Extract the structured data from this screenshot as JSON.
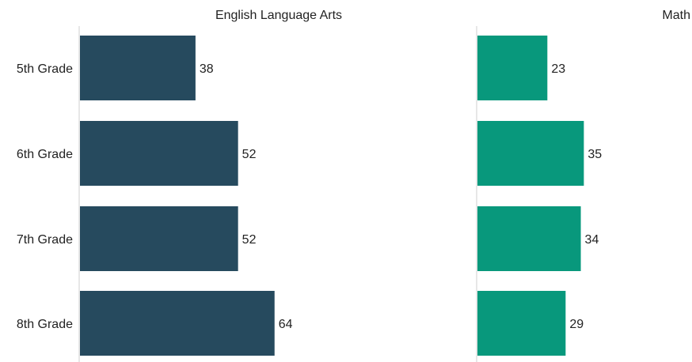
{
  "chart_data": {
    "type": "bar",
    "orientation": "horizontal",
    "categories": [
      "5th Grade",
      "6th Grade",
      "7th Grade",
      "8th Grade"
    ],
    "series": [
      {
        "name": "English Language Arts",
        "values": [
          38,
          52,
          52,
          64
        ],
        "color": "#264a5e"
      },
      {
        "name": "Math",
        "values": [
          23,
          35,
          34,
          29
        ],
        "color": "#08987c"
      }
    ],
    "layout": "small multiples side by side, one panel per series",
    "grid": false,
    "legend": "none"
  }
}
